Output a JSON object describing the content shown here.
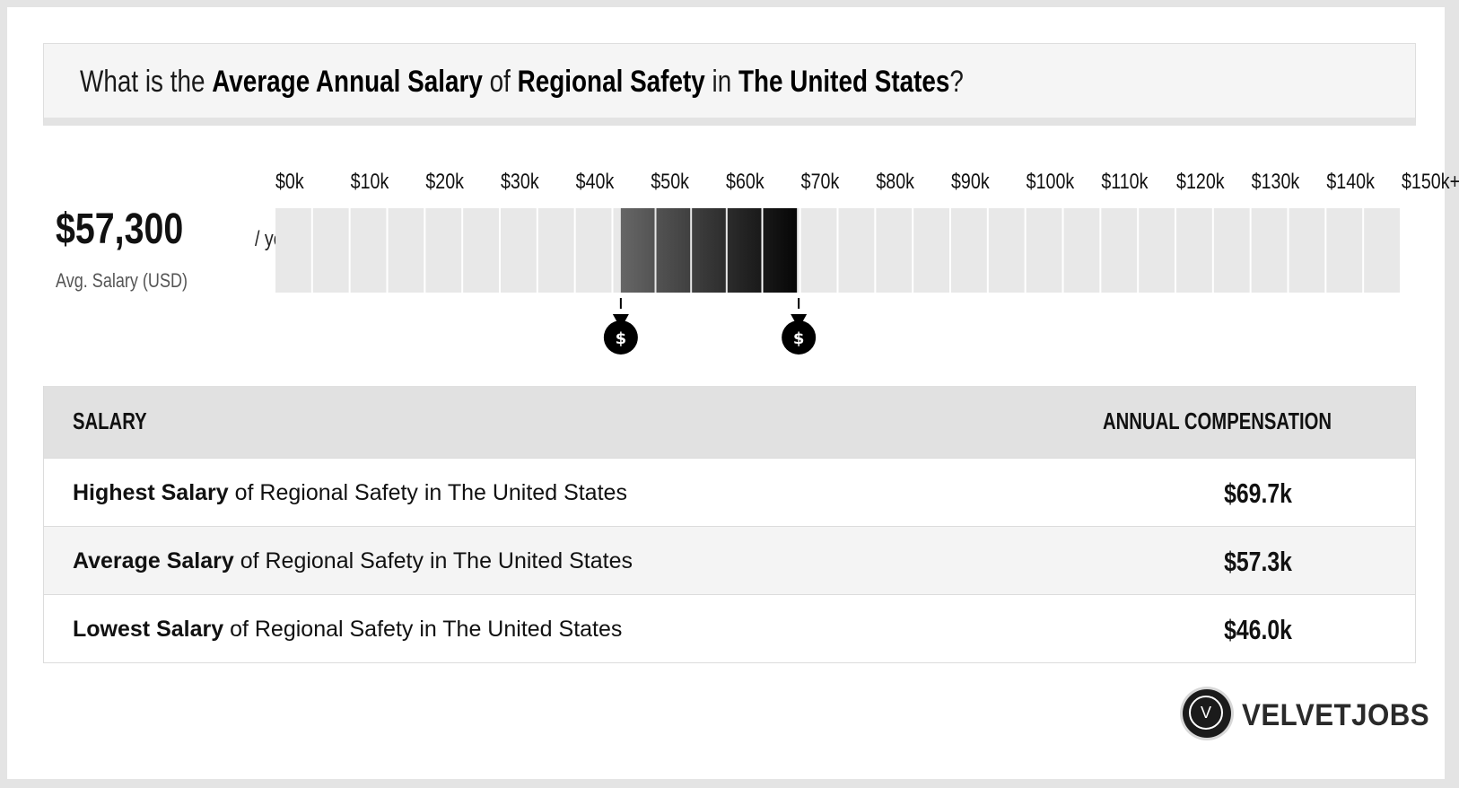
{
  "title": {
    "prefix": "What is the ",
    "emph1": "Average Annual Salary",
    "mid1": " of ",
    "emph2": "Regional Safety",
    "mid2": " in ",
    "emph3": "The United States",
    "suffix": "?"
  },
  "average": {
    "value": "$57,300",
    "unit": "/ year",
    "label": "Avg. Salary (USD)"
  },
  "chart_data": {
    "type": "bar",
    "tick_labels": [
      "$0k",
      "$10k",
      "$20k",
      "$30k",
      "$40k",
      "$50k",
      "$60k",
      "$70k",
      "$80k",
      "$90k",
      "$100k",
      "$110k",
      "$120k",
      "$130k",
      "$140k",
      "$150k+"
    ],
    "x_unit": "USD thousands",
    "range_low": 46.0,
    "range_high": 69.7,
    "average": 57.3,
    "xlim": [
      0,
      150
    ],
    "bin_width_k": 5,
    "colors": {
      "empty_cell": "#e8e8e8",
      "range_start": "#666666",
      "range_end": "#050505",
      "marker": "#000000"
    },
    "markers": [
      {
        "icon": "money-bag-icon",
        "symbol": "$",
        "value": 46.0
      },
      {
        "icon": "money-bag-icon",
        "symbol": "$",
        "value": 69.7
      }
    ]
  },
  "table": {
    "headers": {
      "left": "SALARY",
      "right": "ANNUAL COMPENSATION"
    },
    "rows": [
      {
        "bold": "Highest Salary",
        "rest": " of Regional Safety in The United States",
        "value": "$69.7k"
      },
      {
        "bold": "Average Salary",
        "rest": " of Regional Safety in The United States",
        "value": "$57.3k"
      },
      {
        "bold": "Lowest Salary",
        "rest": " of Regional Safety in The United States",
        "value": "$46.0k"
      }
    ]
  },
  "logo": {
    "letter": "V",
    "text": "VELVETJOBS",
    "icon": "velvetjobs-logo-icon"
  }
}
